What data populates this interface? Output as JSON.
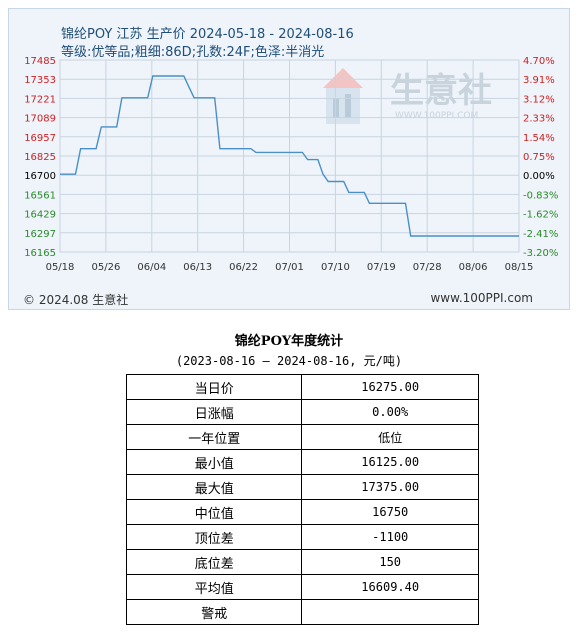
{
  "chart": {
    "title": "锦纶POY 江苏 生产价 2024-05-18 - 2024-08-16",
    "subtitle": "等级:优等品;粗细:86D;孔数:24F;色泽:半消光",
    "footer_left": "© 2024.08 生意社",
    "footer_right": "www.100PPI.com",
    "watermark_text": "生意社",
    "watermark_url": "WWW.100PPI.COM"
  },
  "chart_data": {
    "type": "line",
    "y_ticks": [
      "17485",
      "17353",
      "17221",
      "17089",
      "16957",
      "16825",
      "16700",
      "16561",
      "16429",
      "16297",
      "16165"
    ],
    "y_right_ticks": [
      "4.70%",
      "3.91%",
      "3.12%",
      "2.33%",
      "1.54%",
      "0.75%",
      "0.00%",
      "-0.83%",
      "-1.62%",
      "-2.41%",
      "-3.20%"
    ],
    "x_ticks": [
      "05/18",
      "05/26",
      "06/04",
      "06/13",
      "06/22",
      "07/01",
      "07/10",
      "07/19",
      "07/28",
      "08/06",
      "08/15"
    ],
    "ylim": [
      16165,
      17485
    ],
    "x_range_days": [
      0,
      89
    ],
    "series": [
      {
        "color": "#4a8fc7",
        "x_days": [
          0,
          2,
          3,
          4,
          5,
          6,
          7,
          8,
          9,
          10,
          11,
          12,
          13,
          14,
          15,
          16,
          17,
          18,
          19,
          20,
          21,
          22,
          23,
          24,
          25,
          26,
          27,
          28,
          29,
          30,
          31,
          32,
          33,
          34,
          35,
          36,
          37,
          38,
          39,
          40,
          41,
          42,
          43,
          44,
          45,
          46,
          47,
          48,
          49,
          50,
          51,
          52,
          53,
          54,
          55,
          56,
          57,
          58,
          59,
          60,
          61,
          62,
          63,
          64,
          65,
          66,
          67,
          68,
          69,
          70,
          71,
          72,
          73,
          74,
          75,
          76,
          77,
          78,
          79,
          80,
          81,
          82,
          83,
          84,
          85,
          86,
          87,
          88,
          89
        ],
        "values": [
          16700,
          16700,
          16700,
          16875,
          16875,
          16875,
          16875,
          17025,
          17025,
          17025,
          17025,
          17225,
          17225,
          17225,
          17225,
          17225,
          17225,
          17375,
          17375,
          17375,
          17375,
          17375,
          17375,
          17375,
          17300,
          17225,
          17225,
          17225,
          17225,
          17225,
          16875,
          16875,
          16875,
          16875,
          16875,
          16875,
          16875,
          16850,
          16850,
          16850,
          16850,
          16850,
          16850,
          16850,
          16850,
          16850,
          16850,
          16800,
          16800,
          16800,
          16700,
          16650,
          16650,
          16650,
          16650,
          16575,
          16575,
          16575,
          16575,
          16500,
          16500,
          16500,
          16500,
          16500,
          16500,
          16500,
          16500,
          16275,
          16275,
          16275,
          16275,
          16275,
          16275,
          16275,
          16275,
          16275,
          16275,
          16275,
          16275,
          16275,
          16275,
          16275,
          16275,
          16275,
          16275,
          16275,
          16275,
          16275,
          16275
        ]
      }
    ],
    "baseline_value": 16700
  },
  "stats": {
    "title": "锦纶POY年度统计",
    "period": "(2023-08-16 — 2024-08-16, 元/吨)",
    "rows": [
      {
        "label": "当日价",
        "value": "16275.00"
      },
      {
        "label": "日涨幅",
        "value": "0.00%"
      },
      {
        "label": "一年位置",
        "value": "低位"
      },
      {
        "label": "最小值",
        "value": "16125.00"
      },
      {
        "label": "最大值",
        "value": "17375.00"
      },
      {
        "label": "中位值",
        "value": "16750"
      },
      {
        "label": "顶位差",
        "value": "-1100"
      },
      {
        "label": "底位差",
        "value": "150"
      },
      {
        "label": "平均值",
        "value": "16609.40"
      },
      {
        "label": "警戒",
        "value": ""
      }
    ]
  },
  "colors": {
    "line": "#4a8fc7",
    "up_axis": "#cc2222",
    "down_axis": "#2a8a2a",
    "grid": "#c8d4e0"
  }
}
